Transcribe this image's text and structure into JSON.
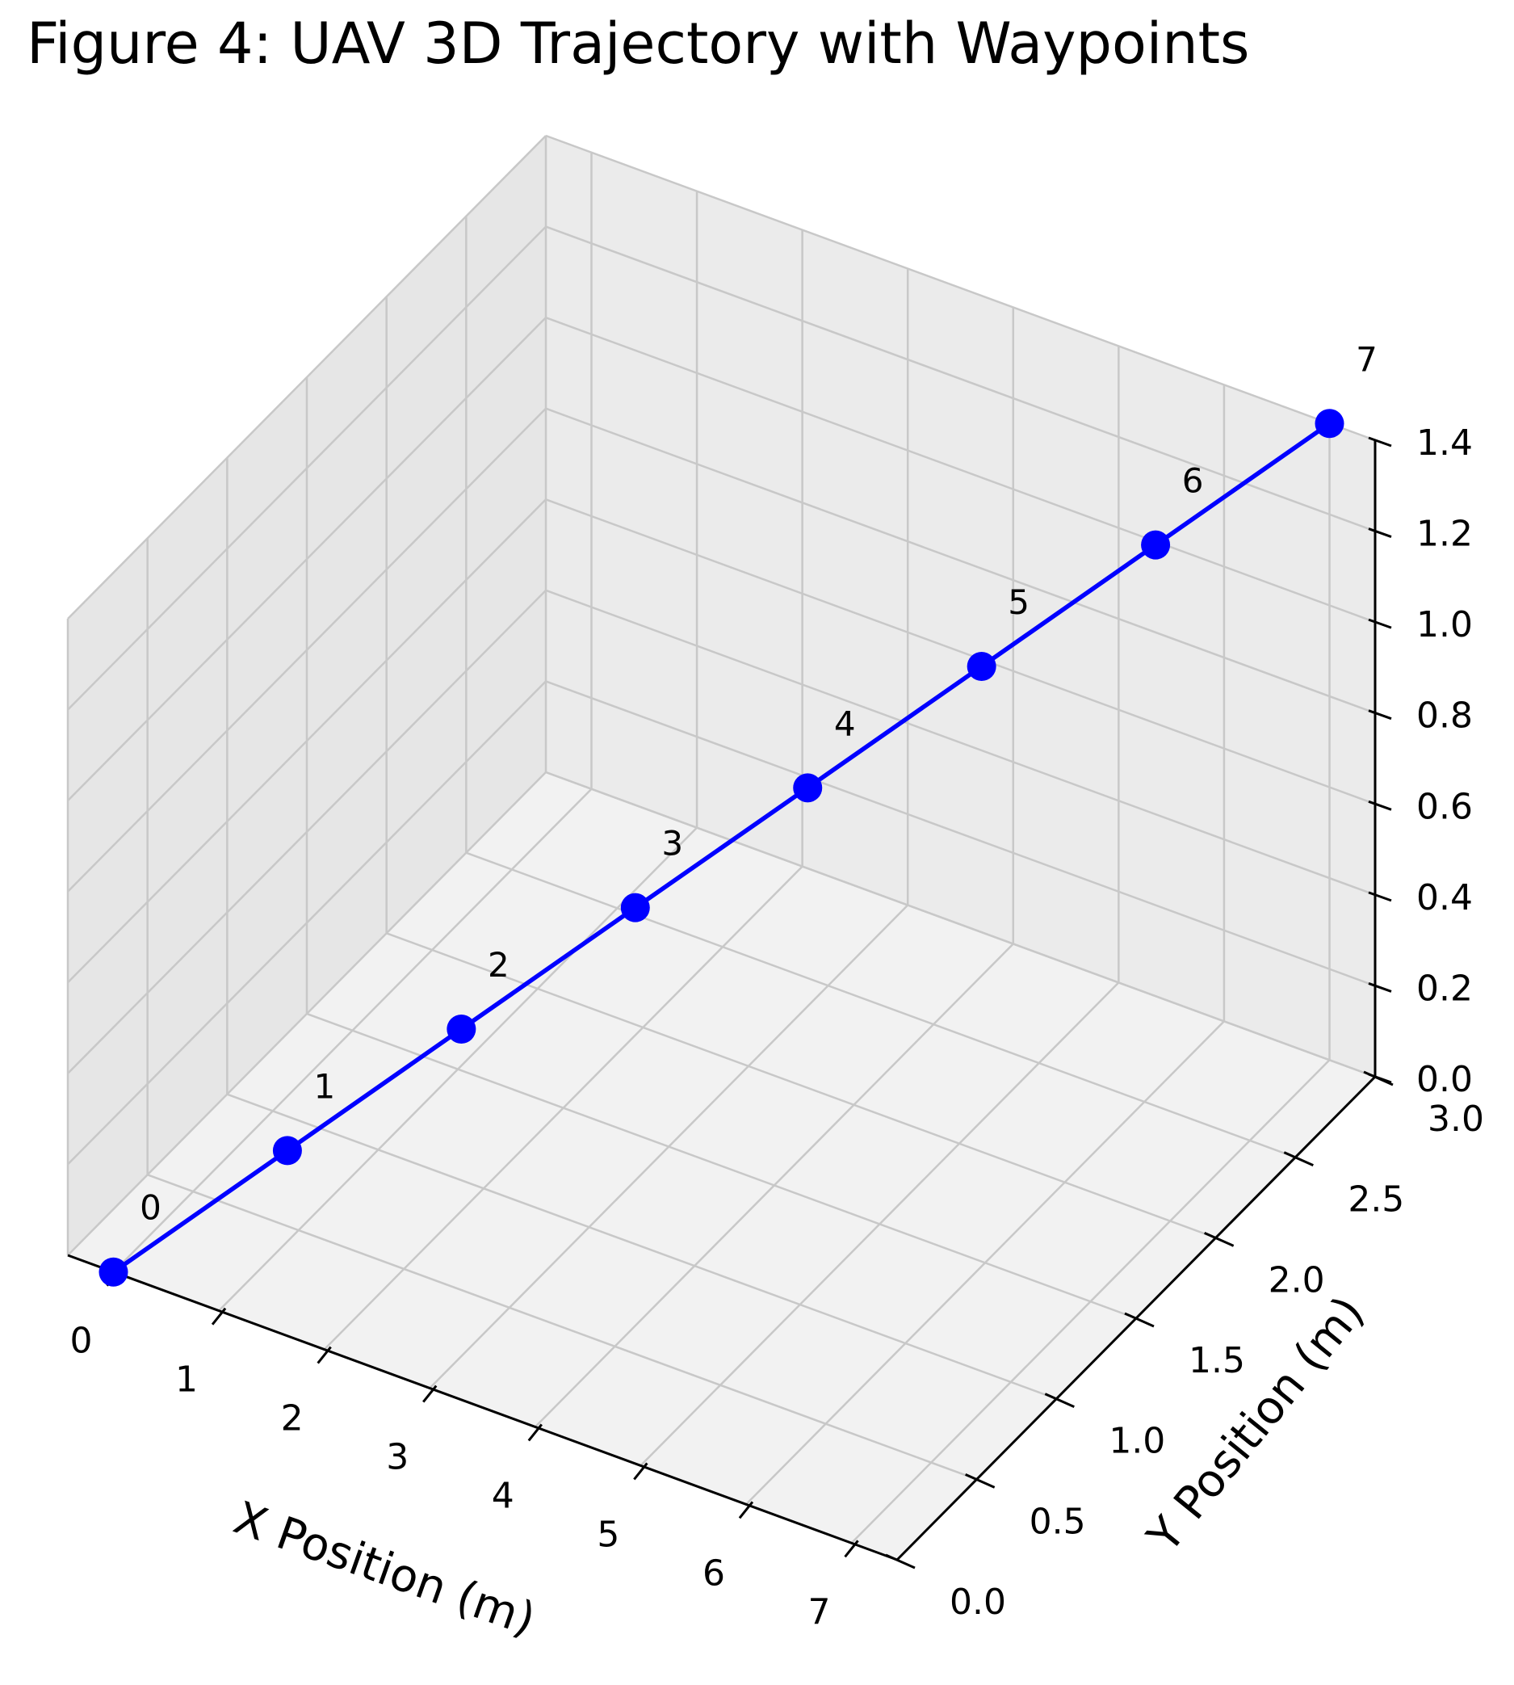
{
  "chart_data": {
    "type": "line",
    "projection": "3d",
    "title": "Figure 4: UAV 3D Trajectory with Waypoints",
    "xlabel": "X Position (m)",
    "ylabel": "Y Position (m)",
    "zlabel": "",
    "xlim": [
      0,
      7
    ],
    "ylim": [
      0,
      3
    ],
    "zlim": [
      0,
      1.4
    ],
    "x_ticks": [
      "0",
      "1",
      "2",
      "3",
      "4",
      "5",
      "6",
      "7"
    ],
    "y_ticks": [
      "0.0",
      "0.5",
      "1.0",
      "1.5",
      "2.0",
      "2.5",
      "3.0"
    ],
    "z_ticks": [
      "0.0",
      "0.2",
      "0.4",
      "0.6",
      "0.8",
      "1.0",
      "1.2",
      "1.4"
    ],
    "grid": true,
    "series": [
      {
        "color": "#0000ff",
        "marker": "circle",
        "points": [
          {
            "label": "0",
            "x": 0,
            "y": 0,
            "z": 0
          },
          {
            "label": "1",
            "x": 1,
            "y": 0.43,
            "z": 0.2
          },
          {
            "label": "2",
            "x": 2,
            "y": 0.86,
            "z": 0.4
          },
          {
            "label": "3",
            "x": 3,
            "y": 1.29,
            "z": 0.6
          },
          {
            "label": "4",
            "x": 4,
            "y": 1.71,
            "z": 0.8
          },
          {
            "label": "5",
            "x": 5,
            "y": 2.14,
            "z": 1.0
          },
          {
            "label": "6",
            "x": 6,
            "y": 2.57,
            "z": 1.2
          },
          {
            "label": "7",
            "x": 7,
            "y": 3.0,
            "z": 1.4
          }
        ]
      }
    ]
  }
}
